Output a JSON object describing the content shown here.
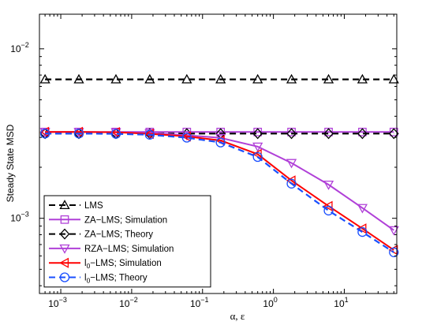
{
  "chart_data": {
    "type": "line",
    "xscale": "log",
    "yscale": "log",
    "xlim": [
      0.0005,
      55
    ],
    "ylim": [
      0.00036,
      0.016
    ],
    "xlabel": "α, ε",
    "ylabel": "Steady State MSD",
    "x_ticks": [
      {
        "value": 0.001,
        "base": "10",
        "exp": "−3"
      },
      {
        "value": 0.01,
        "base": "10",
        "exp": "−2"
      },
      {
        "value": 0.1,
        "base": "10",
        "exp": "−1"
      },
      {
        "value": 1,
        "base": "10",
        "exp": "0"
      },
      {
        "value": 10,
        "base": "10",
        "exp": "1"
      }
    ],
    "y_ticks": [
      {
        "value": 0.001,
        "base": "10",
        "exp": "−3"
      },
      {
        "value": 0.01,
        "base": "10",
        "exp": "−2"
      }
    ],
    "grid": false,
    "legend_position": "bottom-left",
    "x": [
      0.0006,
      0.0018,
      0.006,
      0.018,
      0.06,
      0.18,
      0.6,
      1.8,
      6,
      18,
      50
    ],
    "series": [
      {
        "name": "LMS",
        "color": "#000000",
        "dash": true,
        "marker": "triangle-up",
        "values": [
          0.0066,
          0.0066,
          0.0066,
          0.0066,
          0.0066,
          0.0066,
          0.0066,
          0.0066,
          0.0066,
          0.0066,
          0.0066
        ]
      },
      {
        "name": "ZA−LMS; Simulation",
        "color": "#b040d8",
        "dash": false,
        "marker": "square",
        "values": [
          0.00323,
          0.00323,
          0.00323,
          0.00323,
          0.00323,
          0.00323,
          0.00323,
          0.00323,
          0.00323,
          0.00323,
          0.00323
        ]
      },
      {
        "name": "ZA−LMS; Theory",
        "color": "#000000",
        "dash": true,
        "marker": "diamond",
        "values": [
          0.00316,
          0.00316,
          0.00316,
          0.00316,
          0.00316,
          0.00316,
          0.00316,
          0.00316,
          0.00316,
          0.00316,
          0.00316
        ]
      },
      {
        "name": "RZA−LMS; Simulation",
        "color": "#b040d8",
        "dash": false,
        "marker": "triangle-down",
        "values": [
          0.00323,
          0.00323,
          0.00322,
          0.00318,
          0.00309,
          0.00298,
          0.00265,
          0.00212,
          0.00158,
          0.00115,
          0.00085
        ]
      },
      {
        "name": "l_0−LMS; Simulation",
        "label_parts": [
          "l",
          "0",
          "−LMS; Simulation"
        ],
        "color": "#ff0000",
        "dash": false,
        "marker": "triangle-left",
        "values": [
          0.00323,
          0.00323,
          0.00322,
          0.00315,
          0.00304,
          0.00288,
          0.00239,
          0.00167,
          0.00118,
          0.00087,
          0.00065
        ]
      },
      {
        "name": "l_0−LMS; Theory",
        "label_parts": [
          "l",
          "0",
          "−LMS; Theory"
        ],
        "color": "#1a4fff",
        "dash": true,
        "marker": "circle",
        "values": [
          0.00316,
          0.00316,
          0.00315,
          0.00311,
          0.00299,
          0.0028,
          0.0023,
          0.0016,
          0.00111,
          0.00083,
          0.00063
        ]
      }
    ]
  }
}
